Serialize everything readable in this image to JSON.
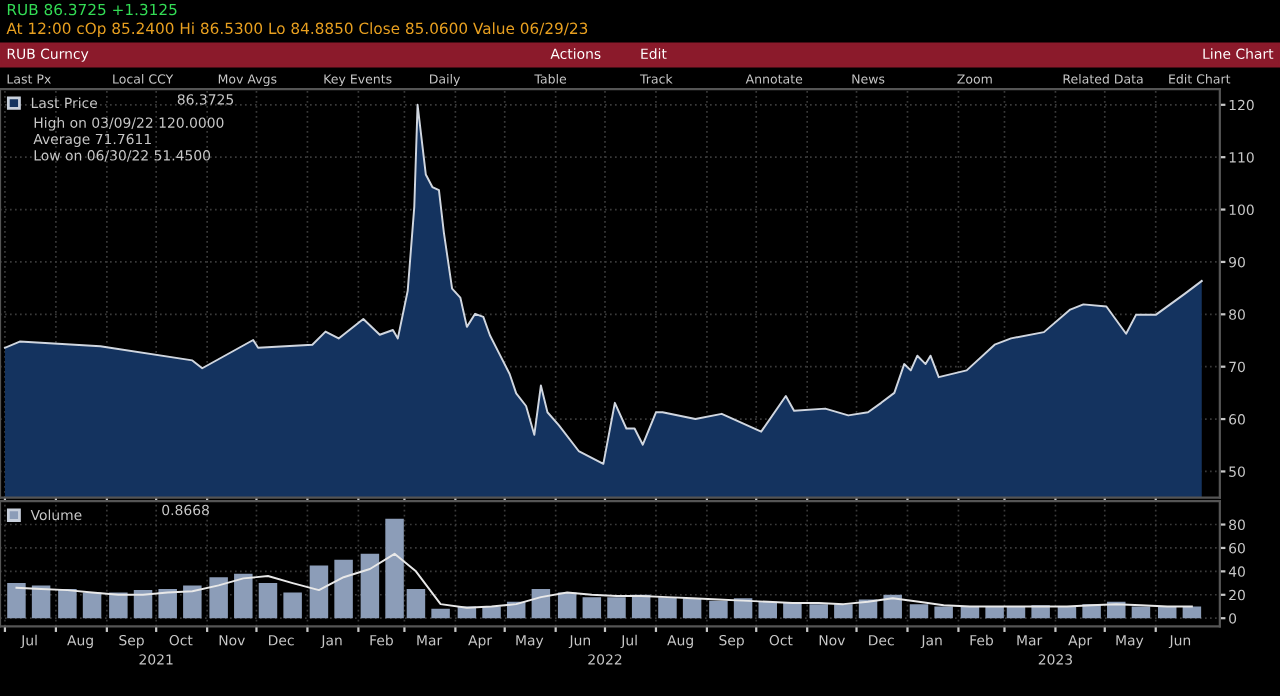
{
  "chart_data": [
    {
      "type": "area",
      "title": "RUB 86.3725 +1.3125",
      "subtitle": "At 12:00 cOp 85.2400 Hi 86.5300 Lo 84.8850 Close 85.0600 Value 06/29/23",
      "annotations": [
        "86.3725",
        "High on 03/09/22 120.0000",
        "Average 71.7611",
        "Low on 06/30/22 51.4500",
        "RUB Curncy",
        "Actions",
        "Edit",
        "Line Chart",
        "Last Px",
        "Local CCY",
        "Mov Avgs",
        "Key Events",
        "Daily",
        "Table",
        "Track",
        "Annotate",
        "News",
        "Zoom",
        "Related Data",
        "Edit Chart"
      ],
      "series": [
        {
          "name": "Last Price",
          "color": "#14335f",
          "x": [
            "2021-07-01",
            "2021-07-10",
            "2021-08-28",
            "2021-10-23",
            "2021-10-29",
            "2021-11-29",
            "2021-12-02",
            "2022-01-04",
            "2022-01-12",
            "2022-01-20",
            "2022-02-04",
            "2022-02-14",
            "2022-02-22",
            "2022-02-25",
            "2022-03-03",
            "2022-03-07",
            "2022-03-09",
            "2022-03-14",
            "2022-03-18",
            "2022-03-22",
            "2022-03-25",
            "2022-03-30",
            "2022-04-04",
            "2022-04-08",
            "2022-04-13",
            "2022-04-18",
            "2022-04-22",
            "2022-04-28",
            "2022-05-04",
            "2022-05-08",
            "2022-05-14",
            "2022-05-19",
            "2022-05-23",
            "2022-05-27",
            "2022-06-03",
            "2022-06-15",
            "2022-06-30",
            "2022-07-07",
            "2022-07-14",
            "2022-07-19",
            "2022-07-24",
            "2022-08-01",
            "2022-08-05",
            "2022-08-25",
            "2022-09-10",
            "2022-10-04",
            "2022-10-19",
            "2022-10-24",
            "2022-11-12",
            "2022-11-26",
            "2022-12-08",
            "2022-12-16",
            "2022-12-24",
            "2022-12-30",
            "2023-01-03",
            "2023-01-07",
            "2023-01-12",
            "2023-01-15",
            "2023-01-20",
            "2023-02-06",
            "2023-02-23",
            "2023-03-05",
            "2023-03-25",
            "2023-04-10",
            "2023-04-18",
            "2023-05-02",
            "2023-05-14",
            "2023-05-20",
            "2023-06-01",
            "2023-06-19",
            "2023-06-29"
          ],
          "values": [
            73.6,
            74.8,
            73.9,
            71.2,
            69.7,
            75.1,
            73.6,
            74.2,
            76.7,
            75.4,
            79.1,
            76.1,
            77.0,
            75.4,
            84.5,
            100.5,
            120.0,
            106.7,
            104.3,
            103.7,
            95.6,
            84.9,
            83.2,
            77.6,
            80.1,
            79.5,
            76.0,
            72.3,
            68.6,
            64.9,
            62.5,
            57.0,
            66.4,
            61.3,
            58.8,
            53.9,
            51.45,
            63.1,
            58.2,
            58.2,
            55.1,
            61.3,
            61.3,
            60.0,
            61.0,
            57.6,
            64.4,
            61.6,
            62.0,
            60.7,
            61.3,
            63.1,
            65.0,
            70.5,
            69.3,
            72.1,
            70.5,
            72.1,
            68.0,
            69.3,
            74.2,
            75.4,
            76.6,
            80.9,
            81.9,
            81.5,
            76.3,
            79.9,
            79.9,
            84.0,
            86.3725
          ]
        }
      ],
      "xlim": [
        "2021-06-28",
        "2023-07-10"
      ],
      "ylim": [
        45,
        123
      ],
      "xticks": [
        {
          "value": "2021-07-01",
          "label": null
        },
        {
          "value": "2021-08-01",
          "label": null
        },
        {
          "value": "2021-09-01",
          "label": null
        },
        {
          "value": "2021-10-01",
          "label": null
        },
        {
          "value": "2021-11-01",
          "label": null
        },
        {
          "value": "2021-12-01",
          "label": null
        },
        {
          "value": "2022-01-01",
          "label": null
        },
        {
          "value": "2022-02-01",
          "label": null
        },
        {
          "value": "2022-03-01",
          "label": null
        },
        {
          "value": "2022-04-01",
          "label": null
        },
        {
          "value": "2022-05-01",
          "label": null
        },
        {
          "value": "2022-06-01",
          "label": null
        },
        {
          "value": "2022-07-01",
          "label": null
        },
        {
          "value": "2022-08-01",
          "label": null
        },
        {
          "value": "2022-09-01",
          "label": null
        },
        {
          "value": "2022-10-01",
          "label": null
        },
        {
          "value": "2022-11-01",
          "label": null
        },
        {
          "value": "2022-12-01",
          "label": null
        },
        {
          "value": "2023-01-01",
          "label": null
        },
        {
          "value": "2023-02-01",
          "label": null
        },
        {
          "value": "2023-03-01",
          "label": null
        },
        {
          "value": "2023-04-01",
          "label": null
        },
        {
          "value": "2023-05-01",
          "label": null
        },
        {
          "value": "2023-06-01",
          "label": null
        }
      ],
      "yticks": [
        50,
        60,
        70,
        80,
        90,
        100,
        110,
        120
      ],
      "tick_labels": "y",
      "grid": true,
      "legend": "top left"
    },
    {
      "type": "bar",
      "annotations": [
        "0.8668"
      ],
      "x": [
        "2021-07-08",
        "2021-07-23",
        "2021-08-08",
        "2021-08-23",
        "2021-09-08",
        "2021-09-23",
        "2021-10-08",
        "2021-10-23",
        "2021-11-08",
        "2021-11-23",
        "2021-12-08",
        "2021-12-23",
        "2022-01-08",
        "2022-01-23",
        "2022-02-08",
        "2022-02-23",
        "2022-03-08",
        "2022-03-23",
        "2022-04-08",
        "2022-04-23",
        "2022-05-08",
        "2022-05-23",
        "2022-06-08",
        "2022-06-23",
        "2022-07-08",
        "2022-07-23",
        "2022-08-08",
        "2022-08-23",
        "2022-09-08",
        "2022-09-23",
        "2022-10-08",
        "2022-10-23",
        "2022-11-08",
        "2022-11-23",
        "2022-12-08",
        "2022-12-23",
        "2023-01-08",
        "2023-01-23",
        "2023-02-08",
        "2023-02-23",
        "2023-03-08",
        "2023-03-23",
        "2023-04-08",
        "2023-04-23",
        "2023-05-08",
        "2023-05-23",
        "2023-06-08",
        "2023-06-23"
      ],
      "series": [
        {
          "name": "Volume",
          "type": "bar",
          "color": "#8c9db8",
          "values": [
            30,
            28,
            25,
            22,
            22,
            24,
            25,
            28,
            35,
            38,
            30,
            22,
            45,
            50,
            55,
            85,
            25,
            8,
            10,
            10,
            14,
            25,
            22,
            18,
            18,
            20,
            18,
            17,
            15,
            17,
            14,
            13,
            12,
            12,
            16,
            20,
            12,
            10,
            10,
            10,
            10,
            11,
            10,
            12,
            14,
            10,
            10,
            10
          ]
        },
        {
          "type": "line",
          "color": "#e8e8e8",
          "values": [
            26,
            25,
            24,
            22,
            20,
            20,
            22,
            23,
            28,
            34,
            36,
            30,
            24,
            35,
            42,
            55,
            40,
            12,
            9,
            10,
            12,
            18,
            22,
            20,
            19,
            19,
            18,
            17,
            16,
            15,
            14,
            13,
            13,
            12,
            14,
            17,
            14,
            11,
            10,
            10,
            10,
            10,
            10,
            11,
            12,
            11,
            10,
            10
          ]
        }
      ],
      "xlim": [
        "2021-06-28",
        "2023-07-10"
      ],
      "ylim": [
        -7,
        100
      ],
      "yticks": [
        0,
        20,
        40,
        60,
        80
      ],
      "xticks": [
        {
          "value": "2021-07-01",
          "label": null
        },
        {
          "value": "2021-07-16",
          "label": "Jul"
        },
        {
          "value": "2021-08-01",
          "label": null
        },
        {
          "value": "2021-08-16",
          "label": "Aug"
        },
        {
          "value": "2021-09-01",
          "label": null
        },
        {
          "value": "2021-09-16",
          "label": "Sep"
        },
        {
          "value": "2021-10-01",
          "label": null
        },
        {
          "value": "2021-10-16",
          "label": "Oct"
        },
        {
          "value": "2021-11-01",
          "label": null
        },
        {
          "value": "2021-11-16",
          "label": "Nov"
        },
        {
          "value": "2021-12-01",
          "label": null
        },
        {
          "value": "2021-12-16",
          "label": "Dec"
        },
        {
          "value": "2022-01-01",
          "label": null
        },
        {
          "value": "2022-01-16",
          "label": "Jan"
        },
        {
          "value": "2022-02-01",
          "label": null
        },
        {
          "value": "2022-02-15",
          "label": "Feb"
        },
        {
          "value": "2022-03-01",
          "label": null
        },
        {
          "value": "2022-03-16",
          "label": "Mar"
        },
        {
          "value": "2022-04-01",
          "label": null
        },
        {
          "value": "2022-04-16",
          "label": "Apr"
        },
        {
          "value": "2022-05-01",
          "label": null
        },
        {
          "value": "2022-05-16",
          "label": "May"
        },
        {
          "value": "2022-06-01",
          "label": null
        },
        {
          "value": "2022-06-16",
          "label": "Jun"
        },
        {
          "value": "2022-07-01",
          "label": null
        },
        {
          "value": "2022-07-16",
          "label": "Jul"
        },
        {
          "value": "2022-08-01",
          "label": null
        },
        {
          "value": "2022-08-16",
          "label": "Aug"
        },
        {
          "value": "2022-09-01",
          "label": null
        },
        {
          "value": "2022-09-16",
          "label": "Sep"
        },
        {
          "value": "2022-10-01",
          "label": null
        },
        {
          "value": "2022-10-16",
          "label": "Oct"
        },
        {
          "value": "2022-11-01",
          "label": null
        },
        {
          "value": "2022-11-16",
          "label": "Nov"
        },
        {
          "value": "2022-12-01",
          "label": null
        },
        {
          "value": "2022-12-16",
          "label": "Dec"
        },
        {
          "value": "2023-01-01",
          "label": null
        },
        {
          "value": "2023-01-16",
          "label": "Jan"
        },
        {
          "value": "2023-02-01",
          "label": null
        },
        {
          "value": "2023-02-15",
          "label": "Feb"
        },
        {
          "value": "2023-03-01",
          "label": null
        },
        {
          "value": "2023-03-16",
          "label": "Mar"
        },
        {
          "value": "2023-04-01",
          "label": null
        },
        {
          "value": "2023-04-16",
          "label": "Apr"
        },
        {
          "value": "2023-05-01",
          "label": null
        },
        {
          "value": "2023-05-16",
          "label": "May"
        },
        {
          "value": "2023-06-01",
          "label": null
        },
        {
          "value": "2023-06-16",
          "label": "Jun"
        }
      ],
      "x2lim": [
        "2021-06-28",
        "2023-07-10"
      ],
      "x2ticks": [
        {
          "value": "2021-10-01",
          "label": "2021"
        },
        {
          "value": "2022-07-01",
          "label": "2022"
        },
        {
          "value": "2023-04-01",
          "label": "2023"
        }
      ],
      "grid": true,
      "legend": "top left"
    }
  ]
}
